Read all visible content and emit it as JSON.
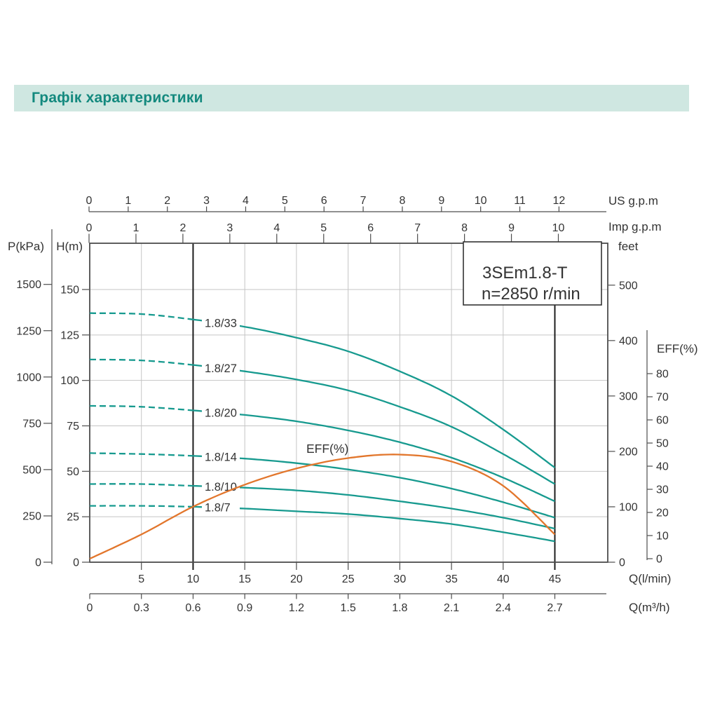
{
  "page": {
    "title": "Графік характеристики"
  },
  "colors": {
    "title_text": "#13897e",
    "title_bg": "#cfe7e1",
    "curve_teal": "#179a8f",
    "curve_orange": "#e2762c",
    "grid": "#c5c5c5",
    "axis": "#4d4d4d",
    "marker_line": "#1c1c1c",
    "ink": "#333333"
  },
  "model_box": {
    "line1": "3SEm1.8-T",
    "line2": "n=2850 r/min"
  },
  "plot_label_eff": "EFF(%)",
  "axes": {
    "us_gpm": {
      "unit": "US g.p.m",
      "ticks": [
        "0",
        "1",
        "2",
        "3",
        "4",
        "5",
        "6",
        "7",
        "8",
        "9",
        "10",
        "11",
        "12"
      ]
    },
    "imp_gpm": {
      "unit": "Imp g.p.m",
      "ticks": [
        "0",
        "1",
        "2",
        "3",
        "4",
        "5",
        "6",
        "7",
        "8",
        "9",
        "10"
      ]
    },
    "p_kpa": {
      "unit": "P(kPa)",
      "ticks": [
        "0",
        "250",
        "500",
        "750",
        "1000",
        "1250",
        "1500"
      ]
    },
    "h_m": {
      "unit": "H(m)",
      "ticks": [
        "0",
        "25",
        "50",
        "75",
        "100",
        "125",
        "150"
      ]
    },
    "feet": {
      "unit": "feet",
      "ticks": [
        "0",
        "100",
        "200",
        "300",
        "400",
        "500"
      ]
    },
    "eff_pct": {
      "unit": "EFF(%)",
      "ticks": [
        "0",
        "10",
        "20",
        "30",
        "40",
        "50",
        "60",
        "70",
        "80"
      ]
    },
    "q_lmin": {
      "unit": "Q(l/min)",
      "ticks": [
        "5",
        "10",
        "15",
        "20",
        "25",
        "30",
        "35",
        "40",
        "45"
      ]
    },
    "q_m3h": {
      "unit": "Q(m³/h)",
      "ticks": [
        "0",
        "0.3",
        "0.6",
        "0.9",
        "1.2",
        "1.5",
        "1.8",
        "2.1",
        "2.4",
        "2.7"
      ]
    }
  },
  "chart_data": {
    "type": "line",
    "title": "3SEm1.8-T n=2850 r/min",
    "xlabel": "Q(l/min)",
    "grid": "on",
    "x": [
      0,
      5,
      10,
      15,
      20,
      25,
      30,
      35,
      40,
      45
    ],
    "x_range_lmin": [
      0,
      45
    ],
    "head_range_m": [
      0,
      150
    ],
    "pressure_range_kpa": [
      0,
      1500
    ],
    "head_range_feet": [
      0,
      500
    ],
    "eff_range_pct": [
      0,
      80
    ],
    "marker_lines_lmin": [
      10,
      45
    ],
    "dashed_until_lmin": 10,
    "head_curves_m": [
      {
        "name": "1.8/33",
        "values": [
          137,
          136.5,
          133.5,
          129.5,
          123.5,
          116,
          105,
          91.5,
          73,
          52
        ]
      },
      {
        "name": "1.8/27",
        "values": [
          111.5,
          111,
          108.5,
          105,
          100.5,
          94.5,
          85.5,
          74.5,
          59.5,
          43
        ]
      },
      {
        "name": "1.8/20",
        "values": [
          86,
          85.5,
          83.5,
          81,
          77.5,
          72.5,
          66,
          57.5,
          46.5,
          33.5
        ]
      },
      {
        "name": "1.8/14",
        "values": [
          60,
          59.5,
          58.5,
          57,
          54.5,
          51,
          46.5,
          40.5,
          33,
          24.5
        ]
      },
      {
        "name": "1.8/10",
        "values": [
          43,
          43,
          42,
          41,
          39.5,
          37,
          33.5,
          29.5,
          24.5,
          18.5
        ]
      },
      {
        "name": "1.8/7",
        "values": [
          31,
          31,
          30.5,
          29.5,
          28,
          26.5,
          24,
          21,
          16.5,
          11.5
        ]
      }
    ],
    "eff_curve_pct": {
      "name": "EFF(%)",
      "values": [
        0,
        10.5,
        22.5,
        32,
        39,
        43.5,
        45,
        42,
        31.5,
        10.5
      ]
    }
  }
}
